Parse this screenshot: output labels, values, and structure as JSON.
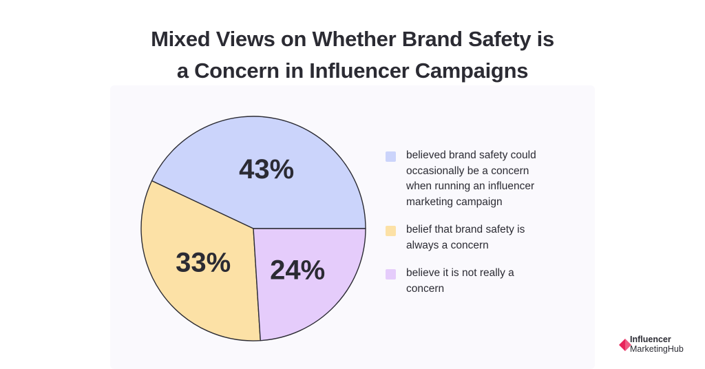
{
  "chart_data": {
    "type": "pie",
    "title": "Mixed Views on Whether Brand Safety is a Concern in Influencer Campaigns",
    "title_lines": [
      "Mixed Views on Whether Brand Safety is",
      "a Concern in Influencer Campaigns"
    ],
    "legend_position": "right",
    "slices": [
      {
        "value": 43,
        "label": "43%",
        "legend_lines": [
          "believed brand safety could",
          "occasionally be a concern",
          "when running an influencer",
          "marketing campaign"
        ],
        "color": "#cbd4fb"
      },
      {
        "value": 33,
        "label": "33%",
        "legend_lines": [
          "belief that brand safety is",
          "always a concern"
        ],
        "color": "#fce1a6"
      },
      {
        "value": 24,
        "label": "24%",
        "legend_lines": [
          "believe it is not really a",
          "concern"
        ],
        "color": "#e5ccfb"
      }
    ]
  },
  "logo": {
    "line1": "Influencer",
    "line2": "MarketingHub",
    "accent_color": "#e8245a"
  }
}
